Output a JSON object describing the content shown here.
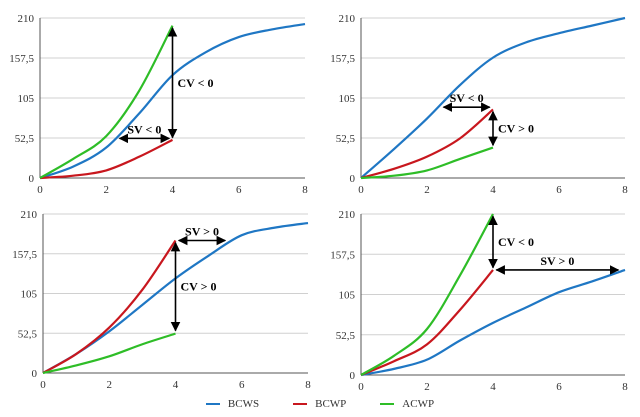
{
  "chart_data": [
    {
      "type": "line",
      "ylim": [
        0,
        210
      ],
      "xlim": [
        0,
        8
      ],
      "yticks": [
        "0",
        "52,5",
        "105",
        "157,5",
        "210"
      ],
      "xticks": [
        "0",
        "2",
        "4",
        "6",
        "8"
      ],
      "series": [
        {
          "name": "BCWS",
          "x": [
            0,
            1,
            2,
            3,
            4,
            5,
            6,
            7,
            8
          ],
          "values": [
            0,
            15,
            40,
            85,
            135,
            165,
            185,
            195,
            202
          ]
        },
        {
          "name": "BCWP",
          "x": [
            0,
            1,
            2,
            3,
            4
          ],
          "values": [
            0,
            3,
            10,
            28,
            50
          ]
        },
        {
          "name": "ACWP",
          "x": [
            0,
            1,
            2,
            3,
            4
          ],
          "values": [
            0,
            25,
            55,
            115,
            200
          ]
        }
      ],
      "annotations": [
        {
          "text": "CV < 0",
          "arrow": "vertical",
          "x": 4,
          "from": 197,
          "to": 53
        },
        {
          "text": "SV < 0",
          "arrow": "horizontal",
          "y": 52,
          "from": 2.4,
          "to": 3.9
        }
      ]
    },
    {
      "type": "line",
      "ylim": [
        0,
        210
      ],
      "xlim": [
        0,
        8
      ],
      "yticks": [
        "0",
        "52,5",
        "105",
        "157,5",
        "210"
      ],
      "xticks": [
        "0",
        "2",
        "4",
        "6",
        "8"
      ],
      "series": [
        {
          "name": "BCWS",
          "x": [
            0,
            1,
            2,
            3,
            4,
            5,
            6,
            7,
            8
          ],
          "values": [
            0,
            38,
            78,
            122,
            158,
            178,
            190,
            200,
            210
          ]
        },
        {
          "name": "BCWP",
          "x": [
            0,
            1,
            2,
            3,
            4
          ],
          "values": [
            0,
            12,
            28,
            52,
            90
          ]
        },
        {
          "name": "ACWP",
          "x": [
            0,
            1,
            2,
            3,
            4
          ],
          "values": [
            0,
            3,
            10,
            25,
            40
          ]
        }
      ],
      "annotations": [
        {
          "text": "SV < 0",
          "arrow": "horizontal",
          "y": 93,
          "from": 2.5,
          "to": 3.9
        },
        {
          "text": "CV > 0",
          "arrow": "vertical",
          "x": 4,
          "from": 87,
          "to": 43
        }
      ]
    },
    {
      "type": "line",
      "ylim": [
        0,
        210
      ],
      "xlim": [
        0,
        8
      ],
      "yticks": [
        "0",
        "52,5",
        "105",
        "157,5",
        "210"
      ],
      "xticks": [
        "0",
        "2",
        "4",
        "6",
        "8"
      ],
      "series": [
        {
          "name": "BCWS",
          "x": [
            0,
            1,
            2,
            3,
            4,
            5,
            6,
            7,
            8
          ],
          "values": [
            0,
            25,
            55,
            90,
            125,
            155,
            182,
            192,
            198
          ]
        },
        {
          "name": "BCWP",
          "x": [
            0,
            1,
            2,
            3,
            4
          ],
          "values": [
            0,
            25,
            60,
            110,
            175
          ]
        },
        {
          "name": "ACWP",
          "x": [
            0,
            1,
            2,
            3,
            4
          ],
          "values": [
            0,
            10,
            22,
            38,
            52
          ]
        }
      ],
      "annotations": [
        {
          "text": "SV > 0",
          "arrow": "horizontal",
          "y": 175,
          "from": 4.1,
          "to": 5.5
        },
        {
          "text": "CV > 0",
          "arrow": "vertical",
          "x": 4,
          "from": 172,
          "to": 56
        }
      ]
    },
    {
      "type": "line",
      "ylim": [
        0,
        210
      ],
      "xlim": [
        0,
        8
      ],
      "yticks": [
        "0",
        "52,5",
        "105",
        "157,5",
        "210"
      ],
      "xticks": [
        "0",
        "2",
        "4",
        "6",
        "8"
      ],
      "series": [
        {
          "name": "BCWS",
          "x": [
            0,
            1,
            2,
            3,
            4,
            5,
            6,
            7,
            8
          ],
          "values": [
            0,
            8,
            20,
            45,
            68,
            88,
            108,
            122,
            137
          ]
        },
        {
          "name": "BCWP",
          "x": [
            0,
            1,
            2,
            3,
            4
          ],
          "values": [
            0,
            18,
            40,
            85,
            137
          ]
        },
        {
          "name": "ACWP",
          "x": [
            0,
            1,
            2,
            3,
            4
          ],
          "values": [
            0,
            25,
            60,
            130,
            210
          ]
        }
      ],
      "annotations": [
        {
          "text": "CV < 0",
          "arrow": "vertical",
          "x": 4,
          "from": 207,
          "to": 140
        },
        {
          "text": "SV > 0",
          "arrow": "horizontal",
          "y": 137,
          "from": 4.1,
          "to": 7.8
        }
      ]
    }
  ],
  "legend": [
    {
      "name": "BCWS",
      "color": "#1f77c4"
    },
    {
      "name": "BCWP",
      "color": "#c8171e"
    },
    {
      "name": "ACWP",
      "color": "#2ebd27"
    }
  ],
  "colors": {
    "BCWS": "#1f77c4",
    "BCWP": "#c8171e",
    "ACWP": "#2ebd27"
  }
}
